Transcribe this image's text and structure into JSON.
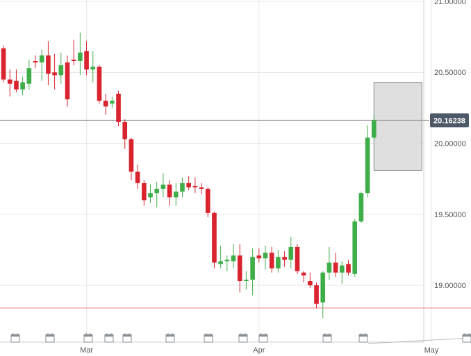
{
  "chart_data": {
    "type": "candlestick",
    "up_color": "#3fae49",
    "down_color": "#d9232e",
    "x": [
      0,
      1,
      2,
      3,
      4,
      5,
      6,
      7,
      8,
      9,
      10,
      11,
      12,
      13,
      14,
      15,
      16,
      17,
      18,
      19,
      20,
      21,
      22,
      23,
      24,
      25,
      26,
      27,
      28,
      29,
      30,
      31,
      32,
      33,
      34,
      35,
      36,
      37,
      38,
      39,
      40,
      41,
      42,
      43,
      44,
      45,
      46,
      47,
      48,
      49,
      50,
      51,
      52,
      53,
      54,
      55,
      56,
      57,
      58
    ],
    "open": [
      20.67,
      20.45,
      20.44,
      20.38,
      20.42,
      20.58,
      20.57,
      20.62,
      20.5,
      20.48,
      20.57,
      20.59,
      20.58,
      20.65,
      20.52,
      20.54,
      20.3,
      20.28,
      20.35,
      20.15,
      20.03,
      19.8,
      19.72,
      19.62,
      19.65,
      19.68,
      19.71,
      19.62,
      19.66,
      19.72,
      19.7,
      19.69,
      19.68,
      19.51,
      19.15,
      19.17,
      19.17,
      19.21,
      19.03,
      19.04,
      19.21,
      19.19,
      19.23,
      19.12,
      19.2,
      19.18,
      19.27,
      19.09,
      19.03,
      19.0,
      18.88,
      19.09,
      19.16,
      19.09,
      19.15,
      19.08,
      19.45,
      19.65,
      20.04
    ],
    "high": [
      20.69,
      20.52,
      20.52,
      20.47,
      20.59,
      20.62,
      20.66,
      20.72,
      20.63,
      20.64,
      20.62,
      20.73,
      20.78,
      20.72,
      20.65,
      20.55,
      20.35,
      20.33,
      20.37,
      20.17,
      20.04,
      19.85,
      19.74,
      19.71,
      19.73,
      19.79,
      19.74,
      19.72,
      19.76,
      19.77,
      19.76,
      19.72,
      19.69,
      19.52,
      19.28,
      19.21,
      19.29,
      19.29,
      19.1,
      19.26,
      19.26,
      19.28,
      19.27,
      19.25,
      19.24,
      19.34,
      19.29,
      19.1,
      19.09,
      19.02,
      19.1,
      19.27,
      19.23,
      19.17,
      19.18,
      19.47,
      19.66,
      20.13,
      20.2
    ],
    "low": [
      20.43,
      20.33,
      20.36,
      20.34,
      20.38,
      20.53,
      20.44,
      20.41,
      20.38,
      20.42,
      20.26,
      20.55,
      20.48,
      20.48,
      20.43,
      20.28,
      20.2,
      20.25,
      20.12,
      19.96,
      19.74,
      19.68,
      19.56,
      19.58,
      19.55,
      19.62,
      19.56,
      19.56,
      19.62,
      19.67,
      19.65,
      19.64,
      19.48,
      19.12,
      19.12,
      19.1,
      19.12,
      18.95,
      18.97,
      18.93,
      19.16,
      19.11,
      19.09,
      19.09,
      19.13,
      19.12,
      19.08,
      19.02,
      18.98,
      18.84,
      18.77,
      19.04,
      19.06,
      19.01,
      19.07,
      19.06,
      19.44,
      19.62,
      20.03
    ],
    "close": [
      20.45,
      20.42,
      20.38,
      20.43,
      20.53,
      20.57,
      20.62,
      20.49,
      20.48,
      20.55,
      20.31,
      20.58,
      20.64,
      20.52,
      20.54,
      20.3,
      20.26,
      20.3,
      20.15,
      20.03,
      19.8,
      19.72,
      19.6,
      19.65,
      19.68,
      19.71,
      19.62,
      19.66,
      19.72,
      19.69,
      19.69,
      19.68,
      19.51,
      19.16,
      19.17,
      19.18,
      19.21,
      19.03,
      19.04,
      19.2,
      19.19,
      19.23,
      19.12,
      19.2,
      19.18,
      19.27,
      19.1,
      19.07,
      19.0,
      18.87,
      19.09,
      19.16,
      19.09,
      19.14,
      19.09,
      19.45,
      19.65,
      20.04,
      20.16238
    ],
    "xlim": [
      -0.55,
      65.8
    ],
    "xticks": [
      {
        "value": 13,
        "label": "Mar"
      },
      {
        "value": 40,
        "label": "Apr"
      },
      {
        "value": 67,
        "label": "May"
      }
    ],
    "ylim": [
      18.6,
      21.01
    ],
    "yticks": [
      {
        "value": 19,
        "label": "19.00000"
      },
      {
        "value": 19.5,
        "label": "19.50000"
      },
      {
        "value": 20,
        "label": "20.00000"
      },
      {
        "value": 20.5,
        "label": "20.50000"
      },
      {
        "value": 21,
        "label": "21.00000"
      }
    ],
    "grid": true,
    "last_price": {
      "value": 20.16238,
      "label": "20.16238"
    },
    "support_line": 18.84,
    "range_box": {
      "x": [
        58,
        65.5
      ],
      "y": [
        19.81,
        20.43
      ]
    }
  }
}
